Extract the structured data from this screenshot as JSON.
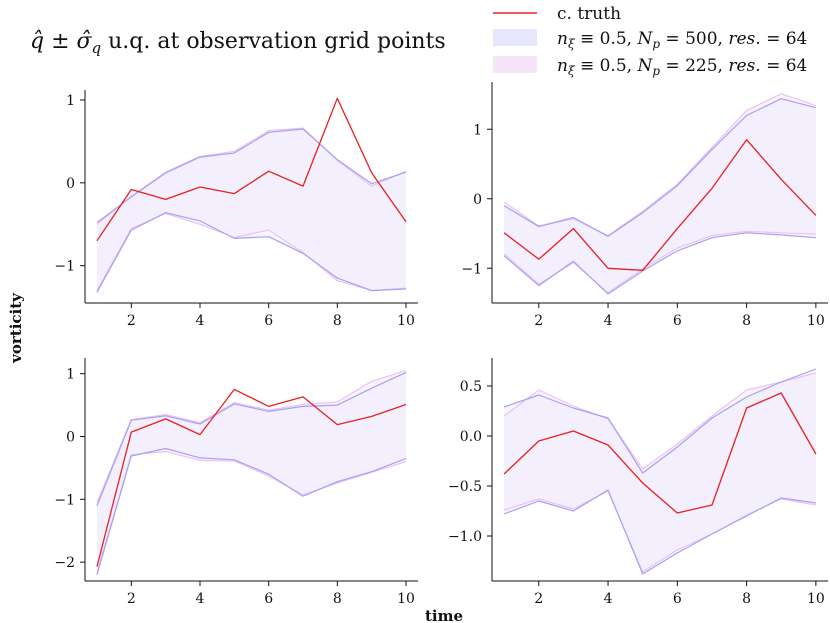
{
  "figure": {
    "title": "q̂ ± σ̂",
    "title_sub": "q",
    "title_rest": " u.q. at observation grid points",
    "xlabel": "time",
    "ylabel": "vorticity"
  },
  "colors": {
    "truth": "#e8201f",
    "ens_a": "#a7a0f3",
    "ens_a_fill": "#ececfd",
    "ens_b": "#ecc2f0",
    "ens_b_fill": "#f9eefb"
  },
  "legend": [
    {
      "label": "c. truth",
      "kind": "line",
      "color": "#e8201f"
    },
    {
      "label": "n_ξ ≡ 0.5, N_p = 500, res. = 64",
      "kind": "patch",
      "color": "#e6e6fc"
    },
    {
      "label": "n_ξ ≡ 0.5, N_p = 225, res. = 64",
      "kind": "patch",
      "color": "#f6e4f8"
    }
  ],
  "legend_parts": {
    "n": "n",
    "xi": "ξ",
    "equiv": " ≡ 0.5, ",
    "N": "N",
    "p": "p",
    "eq500": " = 500, ",
    "eq225": " = 225, ",
    "res": "res.",
    "eq64": " = 64"
  },
  "chart_data": [
    {
      "type": "line",
      "x": [
        1,
        2,
        3,
        4,
        5,
        6,
        7,
        8,
        9,
        10
      ],
      "xticks": [
        2,
        4,
        6,
        8,
        10
      ],
      "xlim": [
        0.65,
        10.35
      ],
      "ylim": [
        -1.45,
        1.12
      ],
      "yticks": [
        -1,
        0,
        1
      ],
      "ytick_labels": [
        "−1",
        "0",
        "1"
      ],
      "truth": [
        -0.7,
        -0.08,
        -0.2,
        -0.05,
        -0.13,
        0.14,
        -0.04,
        1.02,
        0.12,
        -0.47
      ],
      "a_upper": [
        -0.48,
        -0.17,
        0.12,
        0.31,
        0.36,
        0.61,
        0.65,
        0.28,
        -0.01,
        0.13
      ],
      "a_lower": [
        -1.32,
        -0.57,
        -0.36,
        -0.46,
        -0.67,
        -0.65,
        -0.85,
        -1.15,
        -1.3,
        -1.28
      ],
      "b_upper": [
        -0.5,
        -0.16,
        0.13,
        0.32,
        0.38,
        0.63,
        0.66,
        0.27,
        -0.04,
        0.14
      ],
      "b_lower": [
        -1.3,
        -0.55,
        -0.37,
        -0.5,
        -0.66,
        -0.57,
        -0.84,
        -1.18,
        -1.3,
        -1.27
      ]
    },
    {
      "type": "line",
      "x": [
        1,
        2,
        3,
        4,
        5,
        6,
        7,
        8,
        9,
        10
      ],
      "xticks": [
        2,
        4,
        6,
        8,
        10
      ],
      "xlim": [
        0.65,
        10.35
      ],
      "ylim": [
        -1.5,
        1.68
      ],
      "yticks": [
        -1,
        0,
        1
      ],
      "ytick_labels": [
        "−1",
        "0",
        "1"
      ],
      "truth": [
        -0.49,
        -0.87,
        -0.43,
        -1.0,
        -1.03,
        -0.43,
        0.15,
        0.85,
        0.28,
        -0.24
      ],
      "a_upper": [
        -0.1,
        -0.4,
        -0.27,
        -0.54,
        -0.2,
        0.19,
        0.71,
        1.2,
        1.44,
        1.31
      ],
      "a_lower": [
        -0.82,
        -1.25,
        -0.9,
        -1.37,
        -1.04,
        -0.75,
        -0.56,
        -0.49,
        -0.52,
        -0.56
      ],
      "b_upper": [
        -0.05,
        -0.39,
        -0.29,
        -0.53,
        -0.18,
        0.21,
        0.74,
        1.27,
        1.51,
        1.34
      ],
      "b_lower": [
        -0.79,
        -1.23,
        -0.92,
        -1.35,
        -1.01,
        -0.71,
        -0.53,
        -0.47,
        -0.49,
        -0.51
      ]
    },
    {
      "type": "line",
      "x": [
        1,
        2,
        3,
        4,
        5,
        6,
        7,
        8,
        9,
        10
      ],
      "xticks": [
        2,
        4,
        6,
        8,
        10
      ],
      "xlim": [
        0.65,
        10.35
      ],
      "ylim": [
        -2.3,
        1.25
      ],
      "yticks": [
        -2,
        -1,
        0,
        1
      ],
      "ytick_labels": [
        "−2",
        "−1",
        "0",
        "1"
      ],
      "truth": [
        -2.07,
        0.07,
        0.28,
        0.03,
        0.75,
        0.48,
        0.63,
        0.19,
        0.32,
        0.51
      ],
      "a_upper": [
        -1.1,
        0.26,
        0.33,
        0.2,
        0.52,
        0.4,
        0.48,
        0.5,
        0.77,
        1.02
      ],
      "a_lower": [
        -2.2,
        -0.31,
        -0.19,
        -0.34,
        -0.37,
        -0.6,
        -0.95,
        -0.72,
        -0.56,
        -0.35
      ],
      "b_upper": [
        -1.05,
        0.27,
        0.35,
        0.22,
        0.54,
        0.42,
        0.51,
        0.55,
        0.88,
        1.05
      ],
      "b_lower": [
        -2.16,
        -0.29,
        -0.24,
        -0.38,
        -0.39,
        -0.63,
        -0.93,
        -0.74,
        -0.57,
        -0.4
      ]
    },
    {
      "type": "line",
      "x": [
        1,
        2,
        3,
        4,
        5,
        6,
        7,
        8,
        9,
        10
      ],
      "xticks": [
        2,
        4,
        6,
        8,
        10
      ],
      "xlim": [
        0.65,
        10.35
      ],
      "ylim": [
        -1.45,
        0.78
      ],
      "yticks": [
        0.5,
        0.0,
        -0.5,
        -1.0
      ],
      "ytick_labels": [
        "0.5",
        "0.0",
        "−0.5",
        "−1.0"
      ],
      "truth": [
        -0.38,
        -0.05,
        0.05,
        -0.09,
        -0.47,
        -0.77,
        -0.69,
        0.28,
        0.43,
        -0.18
      ],
      "a_upper": [
        0.29,
        0.41,
        0.28,
        0.18,
        -0.37,
        -0.11,
        0.18,
        0.39,
        0.54,
        0.67
      ],
      "a_lower": [
        -0.78,
        -0.65,
        -0.75,
        -0.54,
        -1.38,
        -1.17,
        -0.98,
        -0.8,
        -0.62,
        -0.67
      ],
      "b_upper": [
        0.2,
        0.46,
        0.3,
        0.17,
        -0.33,
        -0.08,
        0.2,
        0.46,
        0.54,
        0.63
      ],
      "b_lower": [
        -0.74,
        -0.63,
        -0.73,
        -0.55,
        -1.36,
        -1.14,
        -0.98,
        -0.79,
        -0.63,
        -0.69
      ]
    }
  ]
}
